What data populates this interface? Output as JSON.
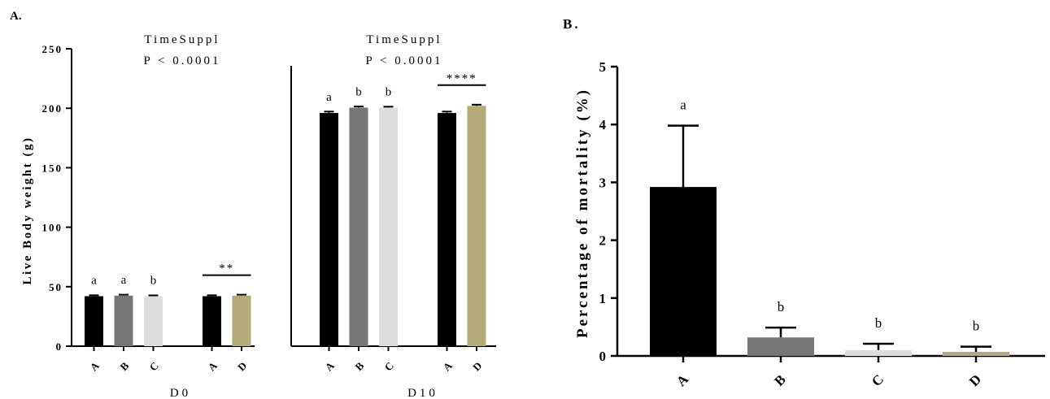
{
  "chart_data": [
    {
      "type": "bar",
      "panel_label": "A.",
      "ylabel": "Live Body weight (g)",
      "ylim": [
        0,
        250
      ],
      "yticks": [
        "0",
        "50",
        "100",
        "150",
        "200",
        "250"
      ],
      "groups": [
        {
          "xlabel": "D0",
          "annotation": [
            "TimeSuppl",
            "P < 0.0001"
          ],
          "sets": [
            {
              "bars": [
                {
                  "category": "A",
                  "value": 42,
                  "error": 0.8,
                  "color": "#000000",
                  "letter": "a"
                },
                {
                  "category": "B",
                  "value": 42.5,
                  "error": 0.8,
                  "color": "#767676",
                  "letter": "a"
                },
                {
                  "category": "C",
                  "value": 42,
                  "error": 0.7,
                  "color": "#dddddd",
                  "letter": "b"
                }
              ]
            },
            {
              "bars": [
                {
                  "category": "A",
                  "value": 42,
                  "error": 0.8,
                  "color": "#000000",
                  "letter": ""
                },
                {
                  "category": "D",
                  "value": 42.5,
                  "error": 0.8,
                  "color": "#b5aa79",
                  "letter": ""
                }
              ],
              "significance": "**"
            }
          ]
        },
        {
          "xlabel": "D10",
          "annotation": [
            "TimeSuppl",
            "P < 0.0001"
          ],
          "sets": [
            {
              "bars": [
                {
                  "category": "A",
                  "value": 196,
                  "error": 1.2,
                  "color": "#000000",
                  "letter": "a"
                },
                {
                  "category": "B",
                  "value": 200.5,
                  "error": 1.0,
                  "color": "#767676",
                  "letter": "b"
                },
                {
                  "category": "C",
                  "value": 200.5,
                  "error": 0.8,
                  "color": "#dddddd",
                  "letter": "b"
                }
              ]
            },
            {
              "bars": [
                {
                  "category": "A",
                  "value": 196,
                  "error": 1.2,
                  "color": "#000000",
                  "letter": ""
                },
                {
                  "category": "D",
                  "value": 202,
                  "error": 1.0,
                  "color": "#b5aa79",
                  "letter": ""
                }
              ],
              "significance": "****"
            }
          ]
        }
      ]
    },
    {
      "type": "bar",
      "panel_label": "B.",
      "ylabel": "Percentage of mortality (%)",
      "ylim": [
        0,
        5
      ],
      "yticks": [
        "0",
        "1",
        "2",
        "3",
        "4",
        "5"
      ],
      "bars": [
        {
          "category": "A",
          "value": 2.92,
          "error": 1.06,
          "color": "#000000",
          "letter": "a"
        },
        {
          "category": "B",
          "value": 0.32,
          "error": 0.17,
          "color": "#767676",
          "letter": "b"
        },
        {
          "category": "C",
          "value": 0.1,
          "error": 0.11,
          "color": "#dddddd",
          "letter": "b"
        },
        {
          "category": "D",
          "value": 0.07,
          "error": 0.09,
          "color": "#b5aa79",
          "letter": "b"
        }
      ]
    }
  ]
}
